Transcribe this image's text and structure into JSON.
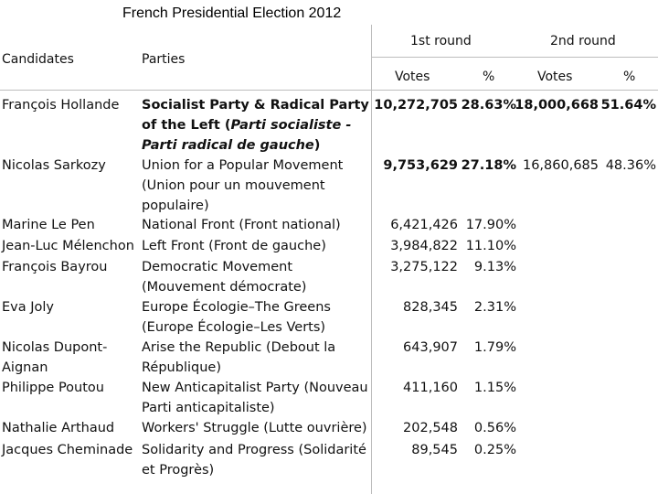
{
  "title": "French Presidential Election 2012",
  "headers": {
    "candidates": "Candidates",
    "parties": "Parties",
    "round1": "1st round",
    "round2": "2nd round",
    "votes": "Votes",
    "pct": "%"
  },
  "rows": [
    {
      "candidate": "François Hollande",
      "party": "Socialist Party & Radical Party of the Left (",
      "party_italic": "Parti socialiste - Parti radical de gauche",
      "party_end": ")",
      "v1": "10,272,705",
      "p1": "28.63%",
      "v2": "18,000,668",
      "p2": "51.64%"
    },
    {
      "candidate": "Nicolas Sarkozy",
      "party": "Union for a Popular Movement (Union pour un mouvement populaire)",
      "v1": "9,753,629",
      "p1": "27.18%",
      "v2": "16,860,685",
      "p2": "48.36%"
    },
    {
      "candidate": "Marine Le Pen",
      "party": "National Front (Front national)",
      "v1": "6,421,426",
      "p1": "17.90%"
    },
    {
      "candidate": "Jean-Luc Mélenchon",
      "party": "Left Front (Front de gauche)",
      "v1": "3,984,822",
      "p1": "11.10%"
    },
    {
      "candidate": "François Bayrou",
      "party": "Democratic Movement (Mouvement démocrate)",
      "v1": "3,275,122",
      "p1": "9.13%"
    },
    {
      "candidate": "Eva Joly",
      "party": "Europe Écologie–The Greens (Europe Écologie–Les Verts)",
      "v1": "828,345",
      "p1": "2.31%"
    },
    {
      "candidate": "Nicolas Dupont-Aignan",
      "party": "Arise the Republic (Debout la République)",
      "v1": "643,907",
      "p1": "1.79%"
    },
    {
      "candidate": "Philippe Poutou",
      "party": "New Anticapitalist Party (Nouveau Parti anticapitaliste)",
      "v1": "411,160",
      "p1": "1.15%"
    },
    {
      "candidate": "Nathalie Arthaud",
      "party": "Workers' Struggle (Lutte ouvrière)",
      "v1": "202,548",
      "p1": "0.56%"
    },
    {
      "candidate": "Jacques Cheminade",
      "party": "Solidarity and Progress (Solidarité et Progrès)",
      "v1": "89,545",
      "p1": "0.25%"
    }
  ]
}
